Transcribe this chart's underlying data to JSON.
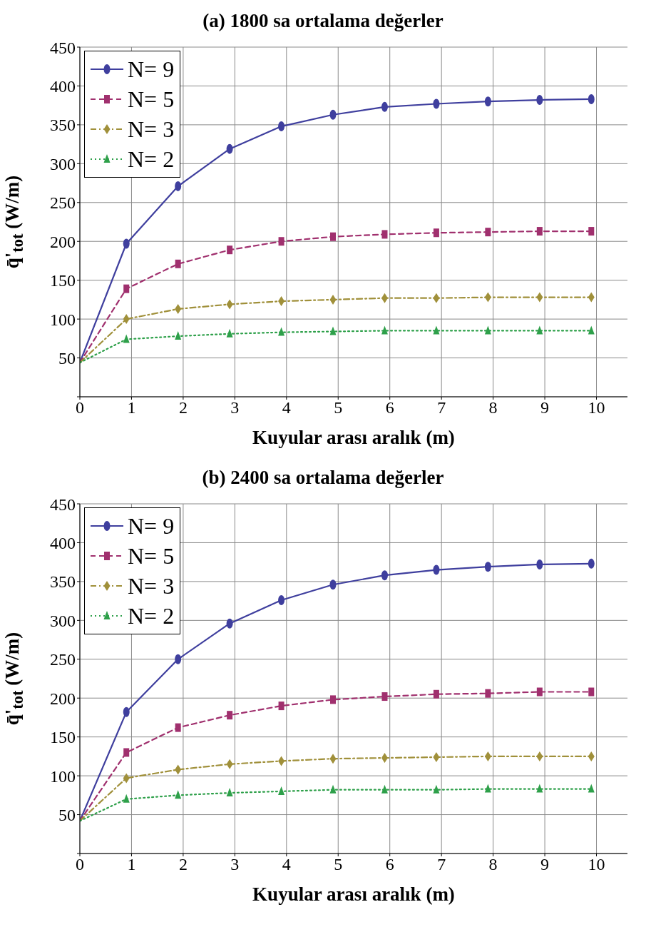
{
  "chart_data": [
    {
      "type": "line",
      "title": "(a) 1800 sa ortalama değerler",
      "xlabel": "Kuyular arası aralık (m)",
      "ylabel": "q̄'$_{tot}$ (W/m)",
      "x": [
        0,
        0.9,
        1.9,
        2.9,
        3.9,
        4.9,
        5.9,
        6.9,
        7.9,
        8.9,
        9.9
      ],
      "xlim": [
        0,
        10.6
      ],
      "xticks": [
        0,
        1,
        2,
        3,
        4,
        5,
        6,
        7,
        8,
        9,
        10
      ],
      "ylim": [
        0,
        450
      ],
      "yticks": [
        {
          "value": 0,
          "label": null
        },
        50,
        100,
        150,
        200,
        250,
        300,
        350,
        400,
        450
      ],
      "grid": true,
      "legend": "top left",
      "series": [
        {
          "name": "N= 9",
          "color": "#3f3f9e",
          "marker": "circle",
          "line_style": "solid",
          "values": [
            44,
            197,
            271,
            319,
            348,
            363,
            373,
            377,
            380,
            382,
            383
          ]
        },
        {
          "name": "N= 5",
          "color": "#a0306e",
          "marker": "square",
          "line_style": "dashed",
          "values": [
            44,
            139,
            171,
            189,
            200,
            206,
            209,
            211,
            212,
            213,
            213
          ]
        },
        {
          "name": "N= 3",
          "color": "#a0903a",
          "marker": "diamond",
          "line_style": "dashdot",
          "values": [
            44,
            100,
            113,
            119,
            123,
            125,
            127,
            127,
            128,
            128,
            128
          ]
        },
        {
          "name": "N= 2",
          "color": "#2ea04a",
          "marker": "triangle",
          "line_style": "dotted",
          "values": [
            44,
            74,
            78,
            81,
            83,
            84,
            85,
            85,
            85,
            85,
            85
          ]
        }
      ]
    },
    {
      "type": "line",
      "title": "(b) 2400 sa ortalama değerler",
      "xlabel": "Kuyular arası aralık (m)",
      "ylabel": "q̄'$_{tot}$ (W/m)",
      "x": [
        0,
        0.9,
        1.9,
        2.9,
        3.9,
        4.9,
        5.9,
        6.9,
        7.9,
        8.9,
        9.9
      ],
      "xlim": [
        0,
        10.6
      ],
      "xticks": [
        0,
        1,
        2,
        3,
        4,
        5,
        6,
        7,
        8,
        9,
        10
      ],
      "ylim": [
        0,
        450
      ],
      "yticks": [
        {
          "value": 0,
          "label": null
        },
        50,
        100,
        150,
        200,
        250,
        300,
        350,
        400,
        450
      ],
      "grid": true,
      "legend": "top left",
      "series": [
        {
          "name": "N= 9",
          "color": "#3f3f9e",
          "marker": "circle",
          "line_style": "solid",
          "values": [
            42,
            182,
            250,
            296,
            326,
            346,
            358,
            365,
            369,
            372,
            373
          ]
        },
        {
          "name": "N= 5",
          "color": "#a0306e",
          "marker": "square",
          "line_style": "dashed",
          "values": [
            42,
            130,
            162,
            178,
            190,
            198,
            202,
            205,
            206,
            208,
            208
          ]
        },
        {
          "name": "N= 3",
          "color": "#a0903a",
          "marker": "diamond",
          "line_style": "dashdot",
          "values": [
            42,
            97,
            108,
            115,
            119,
            122,
            123,
            124,
            125,
            125,
            125
          ]
        },
        {
          "name": "N= 2",
          "color": "#2ea04a",
          "marker": "triangle",
          "line_style": "dotted",
          "values": [
            42,
            70,
            75,
            78,
            80,
            82,
            82,
            82,
            83,
            83,
            83
          ]
        }
      ]
    }
  ]
}
